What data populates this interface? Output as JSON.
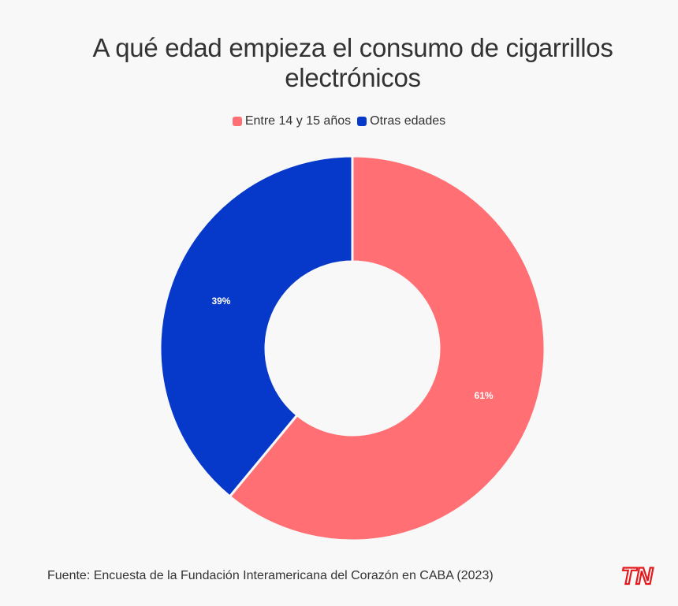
{
  "chart_data": {
    "type": "pie",
    "title": "A qué edad empieza el consumo de cigarrillos electrónicos",
    "categories": [
      "Entre 14 y 15 años",
      "Otras edades"
    ],
    "values": [
      61,
      39
    ],
    "value_labels": [
      "61%",
      "39%"
    ],
    "colors": [
      "#ff6f73",
      "#0639c9"
    ],
    "donut": true,
    "legend_position": "top"
  },
  "footer": {
    "source": "Fuente: Encuesta de la Fundación Interamericana del Corazón en CABA (2023)",
    "logo_text": "TN"
  },
  "colors": {
    "background": "#f8f8f8",
    "text": "#333333",
    "logo_red": "#e3191b",
    "logo_blue": "#0a3fc7"
  }
}
